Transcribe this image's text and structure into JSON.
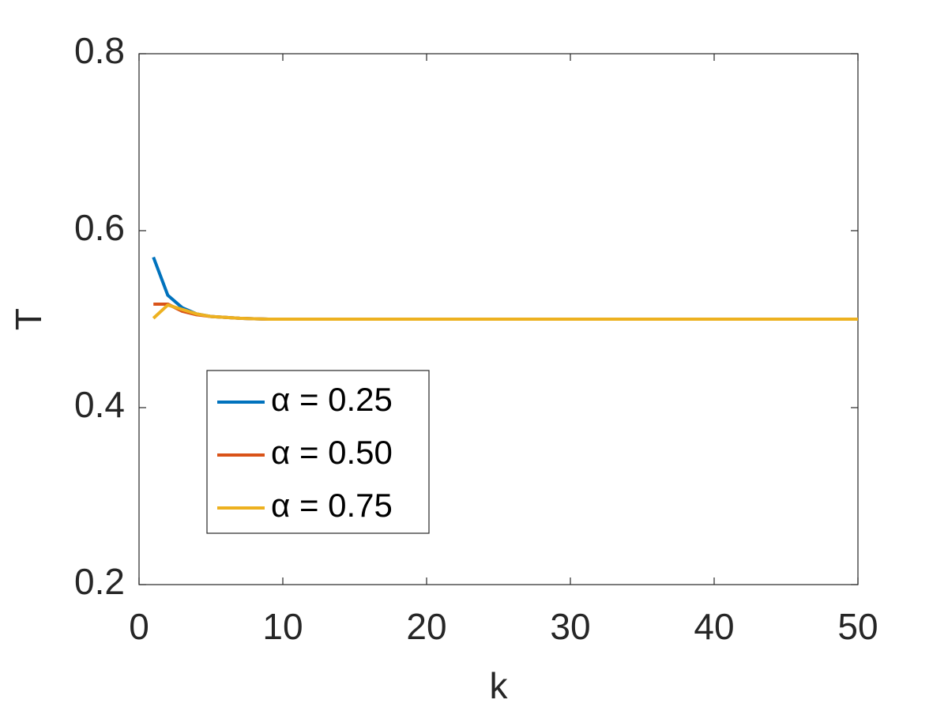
{
  "chart_data": {
    "type": "line",
    "x": [
      1,
      2,
      3,
      4,
      5,
      6,
      7,
      8,
      9,
      10,
      11,
      12,
      13,
      14,
      15,
      16,
      17,
      18,
      19,
      20,
      21,
      22,
      23,
      24,
      25,
      26,
      27,
      28,
      29,
      30,
      31,
      32,
      33,
      34,
      35,
      36,
      37,
      38,
      39,
      40,
      41,
      42,
      43,
      44,
      45,
      46,
      47,
      48,
      49,
      50
    ],
    "series": [
      {
        "name": "α = 0.25",
        "color": "#0072bd",
        "values": [
          0.57,
          0.527,
          0.513,
          0.506,
          0.503,
          0.502,
          0.501,
          0.5005,
          0.5,
          0.5,
          0.5,
          0.5,
          0.5,
          0.5,
          0.5,
          0.5,
          0.5,
          0.5,
          0.5,
          0.5,
          0.5,
          0.5,
          0.5,
          0.5,
          0.5,
          0.5,
          0.5,
          0.5,
          0.5,
          0.5,
          0.5,
          0.5,
          0.5,
          0.5,
          0.5,
          0.5,
          0.5,
          0.5,
          0.5,
          0.5,
          0.5,
          0.5,
          0.5,
          0.5,
          0.5,
          0.5,
          0.5,
          0.5,
          0.5,
          0.5
        ]
      },
      {
        "name": "α = 0.50",
        "color": "#d95319",
        "values": [
          0.517,
          0.517,
          0.509,
          0.505,
          0.503,
          0.502,
          0.501,
          0.5005,
          0.5,
          0.5,
          0.5,
          0.5,
          0.5,
          0.5,
          0.5,
          0.5,
          0.5,
          0.5,
          0.5,
          0.5,
          0.5,
          0.5,
          0.5,
          0.5,
          0.5,
          0.5,
          0.5,
          0.5,
          0.5,
          0.5,
          0.5,
          0.5,
          0.5,
          0.5,
          0.5,
          0.5,
          0.5,
          0.5,
          0.5,
          0.5,
          0.5,
          0.5,
          0.5,
          0.5,
          0.5,
          0.5,
          0.5,
          0.5,
          0.5,
          0.5
        ]
      },
      {
        "name": "α = 0.75",
        "color": "#edb120",
        "values": [
          0.501,
          0.516,
          0.511,
          0.506,
          0.503,
          0.502,
          0.501,
          0.5005,
          0.5,
          0.5,
          0.5,
          0.5,
          0.5,
          0.5,
          0.5,
          0.5,
          0.5,
          0.5,
          0.5,
          0.5,
          0.5,
          0.5,
          0.5,
          0.5,
          0.5,
          0.5,
          0.5,
          0.5,
          0.5,
          0.5,
          0.5,
          0.5,
          0.5,
          0.5,
          0.5,
          0.5,
          0.5,
          0.5,
          0.5,
          0.5,
          0.5,
          0.5,
          0.5,
          0.5,
          0.5,
          0.5,
          0.5,
          0.5,
          0.5,
          0.5
        ]
      }
    ],
    "x_label": "k",
    "y_label": "T",
    "xlim": [
      0,
      50
    ],
    "xticks": [
      0,
      10,
      20,
      30,
      40,
      50
    ],
    "ylim": [
      0.2,
      0.8
    ],
    "yticks": [
      0.2,
      0.4,
      0.6,
      0.8
    ],
    "grid": false,
    "legend": "lower left"
  }
}
